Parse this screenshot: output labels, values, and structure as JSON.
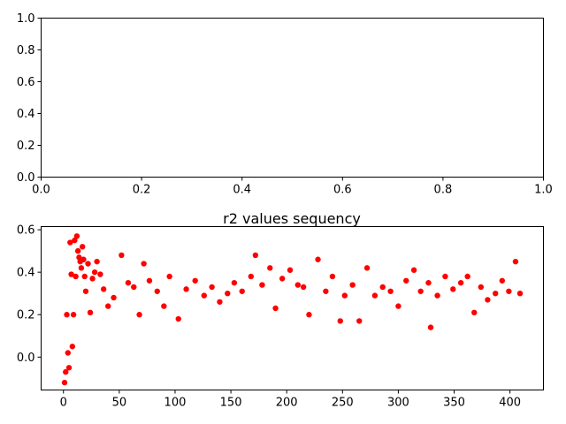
{
  "chart_data": [
    {
      "type": "empty",
      "title": "",
      "xlabel": "",
      "ylabel": "",
      "xlim": [
        0,
        1
      ],
      "ylim": [
        0,
        1
      ],
      "xticks": [
        0,
        0.2,
        0.4,
        0.6,
        0.8,
        1
      ],
      "xtick_labels": [
        "0.0",
        "0.2",
        "0.4",
        "0.6",
        "0.8",
        "1.0"
      ],
      "yticks": [
        0,
        0.2,
        0.4,
        0.6,
        0.8,
        1
      ],
      "ytick_labels": [
        "0.0",
        "0.2",
        "0.4",
        "0.6",
        "0.8",
        "1.0"
      ],
      "grid": false
    },
    {
      "type": "scatter",
      "title": "r2 values sequency",
      "xlabel": "",
      "ylabel": "",
      "xlim": [
        -20,
        430
      ],
      "ylim": [
        -0.155,
        0.615
      ],
      "xticks": [
        0,
        50,
        100,
        150,
        200,
        250,
        300,
        350,
        400
      ],
      "xtick_labels": [
        "0",
        "50",
        "100",
        "150",
        "200",
        "250",
        "300",
        "350",
        "400"
      ],
      "yticks": [
        0,
        0.2,
        0.4,
        0.6
      ],
      "ytick_labels": [
        "0.0",
        "0.2",
        "0.4",
        "0.6"
      ],
      "grid": false,
      "marker_color": "#ff0000",
      "series": [
        {
          "x": [
            1,
            2,
            3,
            4,
            5,
            6,
            7,
            8,
            9,
            10,
            11,
            12,
            13,
            14,
            15,
            16,
            17,
            18,
            19,
            20,
            22,
            24,
            26,
            28,
            30,
            33,
            36,
            40,
            45,
            52,
            58,
            63,
            68,
            72,
            77,
            84,
            90,
            95,
            103,
            110,
            118,
            126,
            133,
            140,
            147,
            153,
            160,
            168,
            172,
            178,
            185,
            190,
            196,
            203,
            210,
            215,
            220,
            228,
            235,
            241,
            248,
            252,
            259,
            265,
            272,
            279,
            286,
            293,
            300,
            307,
            314,
            320,
            327,
            329,
            335,
            342,
            349,
            356,
            362,
            368,
            374,
            380,
            387,
            393,
            399,
            405,
            409
          ],
          "y": [
            -0.12,
            -0.07,
            0.2,
            0.02,
            -0.05,
            0.54,
            0.39,
            0.05,
            0.2,
            0.55,
            0.38,
            0.57,
            0.5,
            0.47,
            0.45,
            0.42,
            0.52,
            0.46,
            0.38,
            0.31,
            0.44,
            0.21,
            0.37,
            0.4,
            0.45,
            0.39,
            0.32,
            0.24,
            0.28,
            0.48,
            0.35,
            0.33,
            0.2,
            0.44,
            0.36,
            0.31,
            0.24,
            0.38,
            0.18,
            0.32,
            0.36,
            0.29,
            0.33,
            0.26,
            0.3,
            0.35,
            0.31,
            0.38,
            0.48,
            0.34,
            0.42,
            0.23,
            0.37,
            0.41,
            0.34,
            0.33,
            0.2,
            0.46,
            0.31,
            0.38,
            0.17,
            0.29,
            0.34,
            0.17,
            0.42,
            0.29,
            0.33,
            0.31,
            0.24,
            0.36,
            0.41,
            0.31,
            0.35,
            0.14,
            0.29,
            0.38,
            0.32,
            0.35,
            0.38,
            0.21,
            0.33,
            0.27,
            0.3,
            0.36,
            0.31,
            0.45,
            0.3
          ]
        }
      ]
    }
  ]
}
